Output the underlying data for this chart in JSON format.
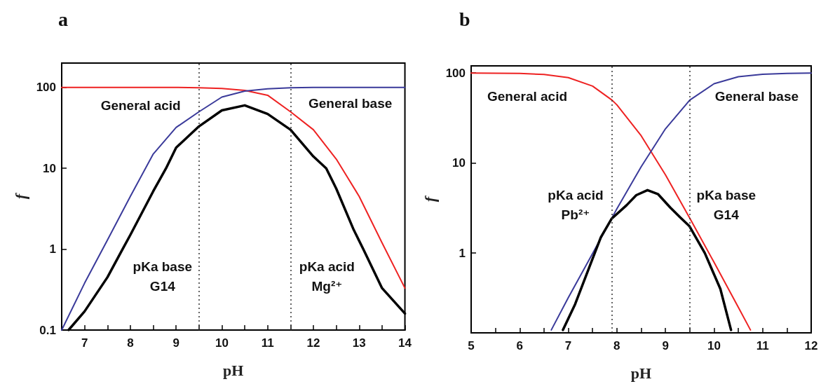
{
  "chart_data": [
    {
      "type": "line",
      "title": "a",
      "xlabel": "pH",
      "ylabel": "f",
      "log": "y",
      "xlim": [
        6.5,
        14
      ],
      "xticks": [
        7,
        {
          "value": 7.5,
          "label": null
        },
        8,
        {
          "value": 8.5,
          "label": null
        },
        9,
        {
          "value": 9.5,
          "label": null
        },
        10,
        {
          "value": 10.5,
          "label": null
        },
        11,
        {
          "value": 11.5,
          "label": null
        },
        12,
        {
          "value": 12.5,
          "label": null
        },
        13,
        {
          "value": 13.5,
          "label": null
        },
        14
      ],
      "ylim": [
        0.1,
        200
      ],
      "yticks": [
        0.1,
        1,
        10,
        100
      ],
      "series": [
        {
          "color": "#ee2222",
          "x": [
            6.5,
            7,
            8,
            9,
            9.5,
            10,
            10.5,
            11,
            11.5,
            12,
            12.5,
            13,
            13.5,
            14
          ],
          "values": [
            100,
            100,
            100,
            100,
            99,
            97,
            92,
            80,
            50,
            30,
            13,
            4.5,
            1.2,
            0.33
          ]
        },
        {
          "color": "#3a3a9a",
          "x": [
            6.5,
            7,
            7.5,
            8,
            8.5,
            9,
            9.5,
            10,
            10.5,
            11,
            11.5,
            12,
            13,
            14
          ],
          "values": [
            0.1,
            0.38,
            1.3,
            4.5,
            15,
            32,
            50,
            76,
            90,
            96,
            99,
            100,
            100,
            100
          ]
        },
        {
          "color": "#000000",
          "x": [
            6.65,
            7,
            7.5,
            7.83,
            8,
            8.5,
            8.78,
            9,
            9.5,
            10,
            10.5,
            11,
            11.5,
            12,
            12.28,
            12.5,
            12.88,
            13.09,
            13.5,
            14
          ],
          "values": [
            0.1,
            0.17,
            0.45,
            1,
            1.5,
            5.2,
            10,
            18,
            33,
            52,
            60,
            47,
            30,
            14,
            10,
            5.6,
            1.74,
            1,
            0.33,
            0.16
          ]
        }
      ],
      "ref_lines": [
        {
          "axis": "x",
          "value": 9.5,
          "label": "pKa base\nG14",
          "line_style": "dotted"
        },
        {
          "axis": "x",
          "value": 11.5,
          "label": "pKa acid\nMg²⁺",
          "line_style": "dotted"
        }
      ],
      "annotations": [
        "General acid",
        "General base"
      ]
    },
    {
      "type": "line",
      "title": "b",
      "xlabel": "pH",
      "ylabel": "f",
      "log": "y",
      "xlim": [
        5,
        12
      ],
      "xticks": [
        5,
        {
          "value": 5.5,
          "label": null
        },
        6,
        {
          "value": 6.5,
          "label": null
        },
        7,
        {
          "value": 7.5,
          "label": null
        },
        8,
        {
          "value": 8.5,
          "label": null
        },
        9,
        {
          "value": 9.5,
          "label": null
        },
        10,
        {
          "value": 10.5,
          "label": null
        },
        11,
        {
          "value": 11.5,
          "label": null
        },
        12
      ],
      "ylim": [
        0.13,
        120
      ],
      "yticks": [
        1,
        10,
        100
      ],
      "series": [
        {
          "color": "#ee2222",
          "x": [
            5,
            5.5,
            6,
            6.5,
            7,
            7.5,
            7.9,
            8,
            8.5,
            9,
            9.5,
            10,
            10.5,
            10.75
          ],
          "values": [
            99.9,
            99.6,
            98.8,
            96.2,
            88.8,
            71.5,
            50,
            44.3,
            20.1,
            7.4,
            2.45,
            0.79,
            0.25,
            0.14
          ]
        },
        {
          "color": "#3a3a9a",
          "x": [
            6.65,
            7,
            7.5,
            8,
            8.5,
            9,
            9.5,
            10,
            10.5,
            11,
            11.5,
            12
          ],
          "values": [
            0.14,
            0.32,
            0.99,
            3.1,
            9.1,
            24,
            50,
            76,
            90.9,
            96.9,
            99,
            99.7
          ]
        },
        {
          "color": "#000000",
          "x": [
            6.89,
            7.14,
            7.46,
            7.67,
            7.89,
            8.2,
            8.4,
            8.63,
            8.85,
            9.1,
            9.3,
            9.49,
            9.81,
            10.13,
            10.35
          ],
          "values": [
            0.14,
            0.27,
            0.76,
            1.5,
            2.4,
            3.4,
            4.4,
            5,
            4.5,
            3.2,
            2.5,
            2,
            1,
            0.4,
            0.14
          ]
        }
      ],
      "ref_lines": [
        {
          "axis": "x",
          "value": 7.9,
          "label": "pKa acid\nPb²⁺",
          "line_style": "dotted"
        },
        {
          "axis": "x",
          "value": 9.5,
          "label": "pKa base\nG14",
          "line_style": "dotted"
        }
      ],
      "annotations": [
        "General acid",
        "General base"
      ]
    }
  ]
}
